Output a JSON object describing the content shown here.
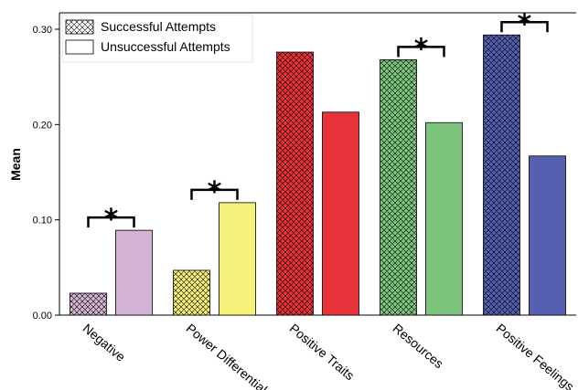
{
  "chart_data": {
    "type": "bar",
    "ylabel": "Mean",
    "xlabel": "",
    "ylim": [
      0,
      0.3
    ],
    "yticks": [
      "0.00",
      "0.10",
      "0.20",
      "0.30"
    ],
    "categories": [
      "Negative",
      "Power Differential",
      "Positive Traits",
      "Resources",
      "Positive Feelings"
    ],
    "category_colors": [
      "#d4b3d4",
      "#f5f07a",
      "#e8323a",
      "#7dc47d",
      "#5560b0"
    ],
    "series": [
      {
        "name": "Successful Attempts",
        "pattern": "crosshatch",
        "values": [
          0.023,
          0.047,
          0.276,
          0.268,
          0.294
        ]
      },
      {
        "name": "Unsuccessful Attempts",
        "pattern": "solid",
        "values": [
          0.089,
          0.118,
          0.213,
          0.202,
          0.167
        ]
      }
    ],
    "significance": {
      "marker": "*",
      "categories": [
        0,
        1,
        3,
        4
      ]
    },
    "legend_position": "top-left",
    "grid": false
  }
}
